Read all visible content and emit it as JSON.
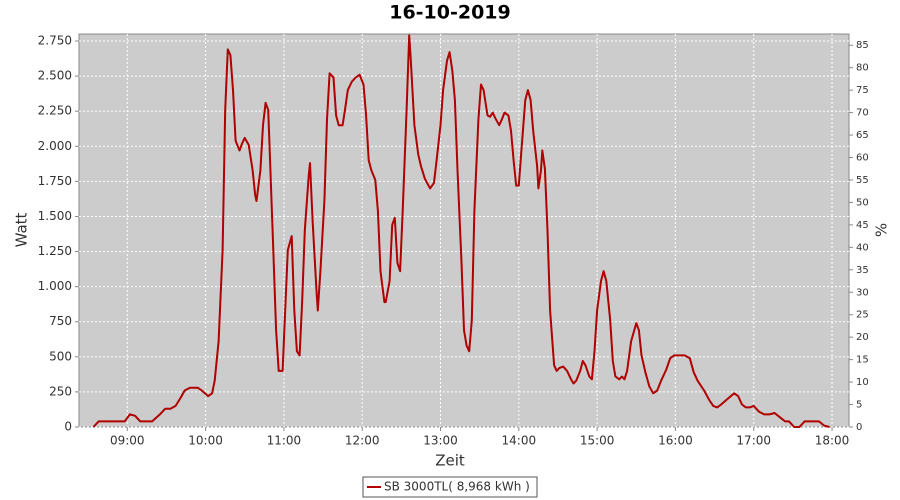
{
  "chart_data": {
    "type": "line",
    "title": "16-10-2019",
    "x_label": "Zeit",
    "y_label": "Watt",
    "y2_label": "%",
    "xlim": [
      503,
      1093
    ],
    "xticks": [
      {
        "value": 540,
        "label": "09:00"
      },
      {
        "value": 600,
        "label": "10:00"
      },
      {
        "value": 660,
        "label": "11:00"
      },
      {
        "value": 720,
        "label": "12:00"
      },
      {
        "value": 780,
        "label": "13:00"
      },
      {
        "value": 840,
        "label": "14:00"
      },
      {
        "value": 900,
        "label": "15:00"
      },
      {
        "value": 960,
        "label": "16:00"
      },
      {
        "value": 1020,
        "label": "17:00"
      },
      {
        "value": 1080,
        "label": "18:00"
      }
    ],
    "ylim": [
      0,
      2800
    ],
    "yticks": [
      0,
      250,
      500,
      750,
      {
        "value": 1000,
        "label": "1.000"
      },
      {
        "value": 1250,
        "label": "1.250"
      },
      {
        "value": 1500,
        "label": "1.500"
      },
      {
        "value": 1750,
        "label": "1.750"
      },
      {
        "value": 2000,
        "label": "2.000"
      },
      {
        "value": 2250,
        "label": "2.250"
      },
      {
        "value": 2500,
        "label": "2.500"
      },
      {
        "value": 2750,
        "label": "2.750"
      }
    ],
    "y2lim": [
      0,
      87.5
    ],
    "y2ticks": [
      0,
      5,
      10,
      15,
      20,
      25,
      30,
      35,
      40,
      45,
      50,
      55,
      60,
      65,
      70,
      75,
      80,
      85
    ],
    "grid": true,
    "legend": "bottom",
    "series": [
      {
        "name": "SB 3000TL( 8,968 kWh )",
        "color": "#b00000",
        "x": [
          514,
          518,
          535,
          538,
          542,
          546,
          550,
          554,
          559,
          565,
          569,
          573,
          577,
          581,
          584,
          588,
          594,
          597,
          602,
          605,
          607,
          610,
          613,
          615,
          617,
          619,
          621,
          623,
          626,
          628,
          630,
          633,
          636,
          638,
          639,
          642,
          644,
          646,
          648,
          649,
          652,
          654,
          656,
          659,
          661,
          663,
          666,
          668,
          670,
          672,
          674,
          676,
          679,
          680,
          682,
          685,
          686,
          688,
          691,
          693,
          695,
          698,
          700,
          702,
          705,
          707,
          709,
          712,
          715,
          718,
          721,
          723,
          725,
          727,
          730,
          732,
          734,
          737,
          738,
          741,
          743,
          745,
          747,
          749,
          751,
          754,
          756,
          757,
          760,
          763,
          765,
          768,
          772,
          775,
          777,
          780,
          782,
          785,
          787,
          789,
          791,
          793,
          796,
          798,
          800,
          802,
          804,
          806,
          809,
          811,
          813,
          816,
          818,
          820,
          822,
          825,
          827,
          829,
          832,
          834,
          836,
          838,
          840,
          842,
          845,
          847,
          849,
          851,
          854,
          855,
          857,
          858,
          860,
          862,
          864,
          867,
          869,
          871,
          874,
          877,
          880,
          882,
          884,
          887,
          889,
          891,
          894,
          896,
          898,
          900,
          903,
          905,
          907,
          910,
          912,
          914,
          917,
          919,
          921,
          923,
          926,
          930,
          932,
          934,
          937,
          940,
          943,
          946,
          949,
          953,
          956,
          959,
          963,
          967,
          971,
          974,
          977,
          982,
          986,
          989,
          992,
          995,
          1000,
          1005,
          1008,
          1011,
          1014,
          1017,
          1020,
          1024,
          1028,
          1032,
          1036,
          1040,
          1044,
          1047,
          1051,
          1055,
          1059,
          1070,
          1074,
          1078
        ],
        "values": [
          0,
          40,
          40,
          40,
          90,
          80,
          40,
          40,
          40,
          90,
          130,
          130,
          150,
          210,
          260,
          280,
          280,
          260,
          220,
          240,
          330,
          610,
          1260,
          2260,
          2690,
          2650,
          2400,
          2040,
          1970,
          2020,
          2060,
          2010,
          1830,
          1650,
          1610,
          1830,
          2150,
          2310,
          2260,
          2010,
          1220,
          690,
          400,
          400,
          830,
          1260,
          1360,
          830,
          540,
          510,
          900,
          1400,
          1790,
          1880,
          1470,
          970,
          830,
          1110,
          1610,
          2190,
          2520,
          2490,
          2220,
          2150,
          2150,
          2270,
          2400,
          2460,
          2490,
          2510,
          2440,
          2220,
          1900,
          1830,
          1760,
          1540,
          1110,
          890,
          890,
          1040,
          1440,
          1490,
          1170,
          1110,
          1540,
          2260,
          2790,
          2650,
          2150,
          1940,
          1860,
          1770,
          1700,
          1740,
          1900,
          2150,
          2400,
          2610,
          2670,
          2540,
          2330,
          1830,
          1190,
          690,
          580,
          540,
          760,
          1540,
          2190,
          2440,
          2400,
          2220,
          2210,
          2240,
          2200,
          2150,
          2190,
          2240,
          2220,
          2110,
          1900,
          1720,
          1720,
          1970,
          2330,
          2400,
          2330,
          2110,
          1860,
          1700,
          1830,
          1970,
          1840,
          1400,
          830,
          440,
          400,
          420,
          430,
          400,
          340,
          310,
          330,
          400,
          470,
          440,
          360,
          340,
          540,
          830,
          1040,
          1110,
          1040,
          760,
          470,
          360,
          340,
          360,
          340,
          400,
          610,
          740,
          690,
          510,
          390,
          290,
          240,
          260,
          330,
          410,
          490,
          510,
          510,
          510,
          490,
          390,
          330,
          260,
          190,
          150,
          140,
          160,
          200,
          240,
          220,
          160,
          140,
          140,
          150,
          110,
          90,
          90,
          100,
          70,
          40,
          40,
          0,
          0,
          40,
          40,
          10,
          0
        ]
      }
    ]
  }
}
